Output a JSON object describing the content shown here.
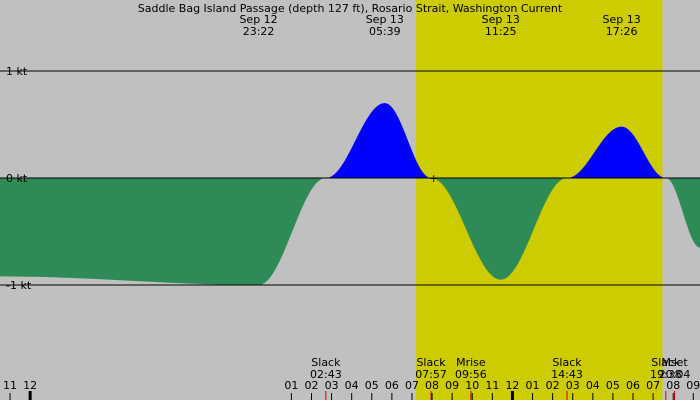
{
  "chart_data": {
    "type": "area",
    "title": "Saddle Bag Island Passage (depth 127 ft), Rosario Strait, Washington Current",
    "y_unit": "kt",
    "y_ticks": [
      {
        "value": 1,
        "label": "1 kt"
      },
      {
        "value": 0,
        "label": "0 kt"
      },
      {
        "value": -1,
        "label": "-1 kt"
      }
    ],
    "ylim": [
      -1.3,
      1.1
    ],
    "x_start": "Sep 12 10:30",
    "x_end": "Sep 13 21:20",
    "hour_labels": [
      "11",
      "12",
      "01",
      "02",
      "03",
      "04",
      "05",
      "06",
      "07",
      "08",
      "09",
      "10",
      "11",
      "12",
      "01",
      "02",
      "03",
      "04",
      "05",
      "06",
      "07",
      "08",
      "09",
      "10"
    ],
    "hour_label_times": [
      "Sep 12 11:00",
      "Sep 12 12:00",
      "Sep 13 01:00",
      "Sep 13 02:00",
      "Sep 13 03:00",
      "Sep 13 04:00",
      "Sep 13 05:00",
      "Sep 13 06:00",
      "Sep 13 07:00",
      "Sep 13 08:00",
      "Sep 13 09:00",
      "Sep 13 10:00",
      "Sep 13 11:00",
      "Sep 13 12:00",
      "Sep 13 13:00",
      "Sep 13 14:00",
      "Sep 13 15:00",
      "Sep 13 16:00",
      "Sep 13 17:00",
      "Sep 13 18:00",
      "Sep 13 19:00",
      "Sep 13 20:00",
      "Sep 13 21:00",
      "Sep 13 22:00"
    ],
    "daylight": {
      "start": "Sep 13 07:12",
      "end": "Sep 13 19:28",
      "color": "#cccc00"
    },
    "night_color": "#c0c0c0",
    "flood_color": "#0000ff",
    "ebb_color": "#2e8b57",
    "series": [
      {
        "name": "",
        "points": [
          {
            "t": "Sep 12 10:30",
            "v": -0.92
          },
          {
            "t": "Sep 12 23:22",
            "v": -1.0
          },
          {
            "t": "Sep 13 02:43",
            "v": 0.0
          },
          {
            "t": "Sep 13 05:39",
            "v": 0.7
          },
          {
            "t": "Sep 13 07:57",
            "v": 0.0
          },
          {
            "t": "Sep 13 11:25",
            "v": -0.95
          },
          {
            "t": "Sep 13 14:43",
            "v": 0.0
          },
          {
            "t": "Sep 13 17:26",
            "v": 0.48
          },
          {
            "t": "Sep 13 19:38",
            "v": 0.0
          },
          {
            "t": "Sep 13 21:20",
            "v": -0.65
          }
        ]
      }
    ],
    "extrema_labels": [
      {
        "date": "Sep 12",
        "time": "23:22",
        "t": "Sep 12 23:22"
      },
      {
        "date": "Sep 13",
        "time": "05:39",
        "t": "Sep 13 05:39"
      },
      {
        "date": "Sep 13",
        "time": "11:25",
        "t": "Sep 13 11:25"
      },
      {
        "date": "Sep 13",
        "time": "17:26",
        "t": "Sep 13 17:26"
      }
    ],
    "events": [
      {
        "label": "Slack",
        "time": "02:43",
        "t": "Sep 13 02:43"
      },
      {
        "label": "Slack",
        "time": "07:57",
        "t": "Sep 13 07:57"
      },
      {
        "label": "Mrise",
        "time": "09:56",
        "t": "Sep 13 09:56"
      },
      {
        "label": "Slack",
        "time": "14:43",
        "t": "Sep 13 14:43"
      },
      {
        "label": "Slack",
        "time": "19:38",
        "t": "Sep 13 19:38"
      },
      {
        "label": "Mset",
        "time": "20:04",
        "t": "Sep 13 20:04"
      }
    ],
    "now_marker": {
      "t": "Sep 13 08:05",
      "v": 0.0,
      "symbol": "+"
    },
    "grid": true
  }
}
